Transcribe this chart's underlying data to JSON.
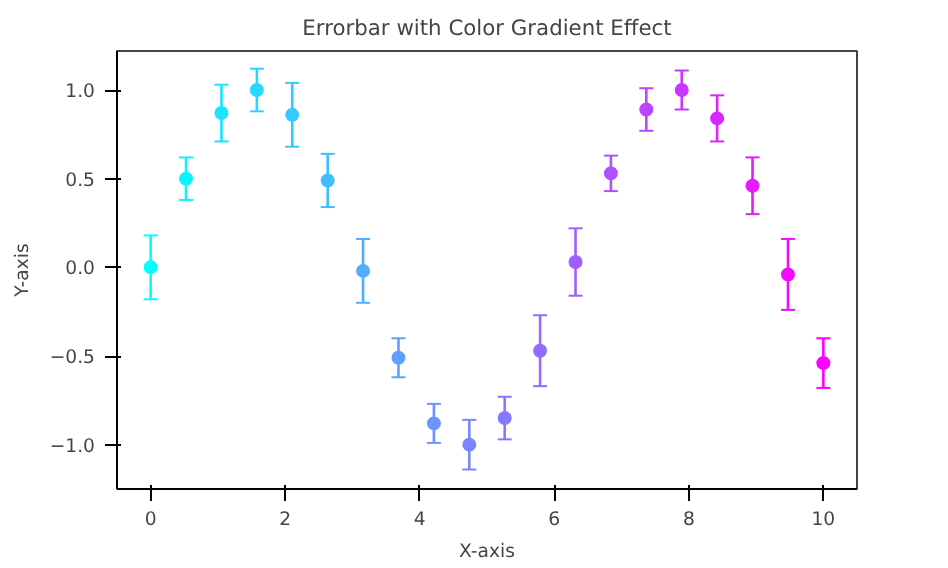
{
  "chart_data": {
    "type": "scatter",
    "title": "Errorbar with Color Gradient Effect",
    "xlabel": "X-axis",
    "ylabel": "Y-axis",
    "x": [
      0,
      0.526,
      1.053,
      1.579,
      2.105,
      2.632,
      3.158,
      3.684,
      4.211,
      4.737,
      5.263,
      5.789,
      6.316,
      6.842,
      7.368,
      7.895,
      8.421,
      8.947,
      9.474,
      10
    ],
    "values": [
      0,
      0.5,
      0.87,
      1.0,
      0.86,
      0.49,
      -0.02,
      -0.51,
      -0.88,
      -1.0,
      -0.85,
      -0.47,
      0.03,
      0.53,
      0.89,
      1.0,
      0.84,
      0.46,
      -0.04,
      -0.54
    ],
    "errors": [
      0.18,
      0.12,
      0.16,
      0.12,
      0.18,
      0.15,
      0.18,
      0.11,
      0.11,
      0.14,
      0.12,
      0.2,
      0.19,
      0.1,
      0.12,
      0.11,
      0.13,
      0.16,
      0.2,
      0.14
    ],
    "colors": [
      "#00ffff",
      "#0df2ff",
      "#1be4ff",
      "#28d7ff",
      "#36c9ff",
      "#43bcff",
      "#51aeff",
      "#5ea1ff",
      "#6b94ff",
      "#7986ff",
      "#8679ff",
      "#946bff",
      "#a15eff",
      "#ae51ff",
      "#bc43ff",
      "#c936ff",
      "#d728ff",
      "#e41bff",
      "#f20dff",
      "#ff00ff"
    ],
    "marker": "circle",
    "grid": false,
    "xlim": [
      -0.5,
      10.5
    ],
    "ylim": [
      -1.25,
      1.22
    ],
    "xticks": [
      0,
      2,
      4,
      6,
      8,
      10
    ],
    "yticks": [
      {
        "value": -1.0,
        "label": "−1.0"
      },
      {
        "value": -0.5,
        "label": "−0.5"
      },
      {
        "value": 0.0,
        "label": "0.0"
      },
      {
        "value": 0.5,
        "label": "0.5"
      },
      {
        "value": 1.0,
        "label": "1.0"
      }
    ]
  }
}
